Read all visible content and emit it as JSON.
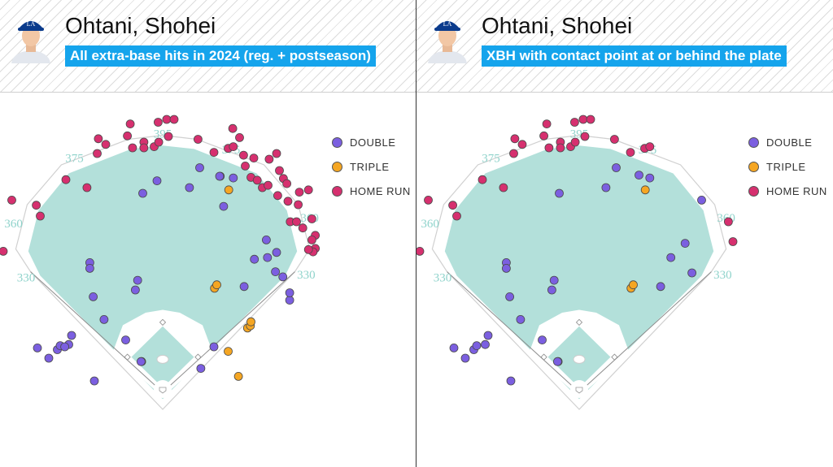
{
  "panels": [
    {
      "player_name": "Ohtani, Shohei",
      "subtitle": "All extra-base hits in 2024 (reg. + postseason)"
    },
    {
      "player_name": "Ohtani, Shohei",
      "subtitle": "XBH with contact point at or behind the plate"
    }
  ],
  "field_labels": [
    "330",
    "360",
    "375",
    "395",
    "375",
    "360",
    "330"
  ],
  "legend": [
    {
      "key": "double",
      "label": "DOUBLE",
      "color": "#7b5fe0"
    },
    {
      "key": "triple",
      "label": "TRIPLE",
      "color": "#f5a623"
    },
    {
      "key": "home_run",
      "label": "HOME RUN",
      "color": "#d6306f"
    }
  ],
  "colors": {
    "field": "#b3e0da",
    "infield": "#ffffff",
    "lines": "#8c8c8c",
    "subtitle_bg": "#15a4ec"
  },
  "chart_data": [
    {
      "type": "scatter",
      "title": "All extra-base hits in 2024 (reg. + postseason)",
      "coordinates": "approximate hit location in feet, origin at home plate, x = toward first-base side, y = toward center field",
      "series": [
        {
          "name": "DOUBLE",
          "points": [
            [
              -220,
              78
            ],
            [
              -200,
              60
            ],
            [
              -185,
              75
            ],
            [
              -180,
              82
            ],
            [
              -165,
              84
            ],
            [
              -160,
              100
            ],
            [
              -172,
              80
            ],
            [
              -128,
              228
            ],
            [
              -128,
              218
            ],
            [
              -122,
              168
            ],
            [
              -103,
              128
            ],
            [
              -65,
              92
            ],
            [
              -48,
              180
            ],
            [
              -44,
              197
            ],
            [
              -35,
              350
            ],
            [
              -10,
              372
            ],
            [
              47,
              360
            ],
            [
              65,
              395
            ],
            [
              101,
              380
            ],
            [
              107,
              327
            ],
            [
              100,
              380
            ],
            [
              124,
              377
            ],
            [
              143,
              186
            ],
            [
              161,
              234
            ],
            [
              182,
              268
            ],
            [
              184,
              237
            ],
            [
              198,
              212
            ],
            [
              200,
              246
            ],
            [
              211,
              203
            ],
            [
              223,
              162
            ],
            [
              223,
              175
            ],
            [
              -37,
              54
            ],
            [
              -38,
              54
            ],
            [
              67,
              42
            ],
            [
              90,
              80
            ],
            [
              -120,
              20
            ]
          ]
        },
        {
          "name": "TRIPLE",
          "points": [
            [
              91,
              183
            ],
            [
              95,
              189
            ],
            [
              149,
              113
            ],
            [
              154,
              117
            ],
            [
              155,
              124
            ],
            [
              115,
              72
            ],
            [
              116,
              356
            ],
            [
              133,
              28
            ]
          ]
        },
        {
          "name": "HOME RUN",
          "points": [
            [
              -280,
              248
            ],
            [
              -265,
              338
            ],
            [
              -215,
              310
            ],
            [
              -222,
              329
            ],
            [
              -170,
              374
            ],
            [
              -133,
              360
            ],
            [
              -115,
              420
            ],
            [
              -100,
              436
            ],
            [
              -113,
              446
            ],
            [
              -62,
              451
            ],
            [
              -57,
              472
            ],
            [
              -33,
              440
            ],
            [
              -15,
              432
            ],
            [
              -7,
              440
            ],
            [
              -53,
              430
            ],
            [
              -33,
              430
            ],
            [
              -8,
              475
            ],
            [
              10,
              450
            ],
            [
              7,
              480
            ],
            [
              20,
              480
            ],
            [
              62,
              445
            ],
            [
              90,
              422
            ],
            [
              115,
              429
            ],
            [
              124,
              432
            ],
            [
              135,
              448
            ],
            [
              123,
              464
            ],
            [
              142,
              417
            ],
            [
              145,
              398
            ],
            [
              155,
              378
            ],
            [
              166,
              373
            ],
            [
              160,
              412
            ],
            [
              175,
              360
            ],
            [
              185,
              364
            ],
            [
              187,
              410
            ],
            [
              200,
              420
            ],
            [
              205,
              390
            ],
            [
              212,
              376
            ],
            [
              218,
              367
            ],
            [
              202,
              346
            ],
            [
              220,
              336
            ],
            [
              224,
              300
            ],
            [
              235,
              300
            ],
            [
              238,
              330
            ],
            [
              240,
              352
            ],
            [
              256,
              356
            ],
            [
              246,
              289
            ],
            [
              268,
              276
            ],
            [
              262,
              268
            ],
            [
              268,
              253
            ],
            [
              264,
              247
            ],
            [
              262,
              305
            ],
            [
              256,
              251
            ]
          ]
        }
      ]
    },
    {
      "type": "scatter",
      "title": "XBH with contact point at or behind the plate",
      "coordinates": "approximate hit location in feet, origin at home plate, x = toward first-base side, y = toward center field",
      "series": [
        {
          "name": "DOUBLE",
          "points": [
            [
              -220,
              78
            ],
            [
              -200,
              60
            ],
            [
              -185,
              75
            ],
            [
              -180,
              82
            ],
            [
              -165,
              84
            ],
            [
              -160,
              100
            ],
            [
              -128,
              228
            ],
            [
              -128,
              218
            ],
            [
              -122,
              168
            ],
            [
              -103,
              128
            ],
            [
              -65,
              92
            ],
            [
              -48,
              180
            ],
            [
              -44,
              197
            ],
            [
              -35,
              350
            ],
            [
              47,
              360
            ],
            [
              65,
              395
            ],
            [
              105,
              382
            ],
            [
              124,
              377
            ],
            [
              143,
              186
            ],
            [
              161,
              237
            ],
            [
              186,
              262
            ],
            [
              198,
              210
            ],
            [
              -37,
              54
            ],
            [
              -38,
              54
            ],
            [
              -120,
              20
            ],
            [
              215,
              338
            ]
          ]
        },
        {
          "name": "TRIPLE",
          "points": [
            [
              91,
              183
            ],
            [
              95,
              189
            ],
            [
              116,
              356
            ]
          ]
        },
        {
          "name": "HOME RUN",
          "points": [
            [
              -280,
              248
            ],
            [
              -265,
              338
            ],
            [
              -215,
              310
            ],
            [
              -222,
              329
            ],
            [
              -170,
              374
            ],
            [
              -133,
              360
            ],
            [
              -115,
              420
            ],
            [
              -100,
              436
            ],
            [
              -113,
              446
            ],
            [
              -62,
              451
            ],
            [
              -57,
              472
            ],
            [
              -33,
              440
            ],
            [
              -15,
              432
            ],
            [
              -7,
              440
            ],
            [
              -53,
              430
            ],
            [
              -33,
              430
            ],
            [
              -8,
              475
            ],
            [
              10,
              450
            ],
            [
              7,
              480
            ],
            [
              20,
              480
            ],
            [
              62,
              445
            ],
            [
              90,
              422
            ],
            [
              115,
              429
            ],
            [
              124,
              432
            ],
            [
              270,
              265
            ],
            [
              262,
              300
            ]
          ]
        }
      ]
    }
  ]
}
